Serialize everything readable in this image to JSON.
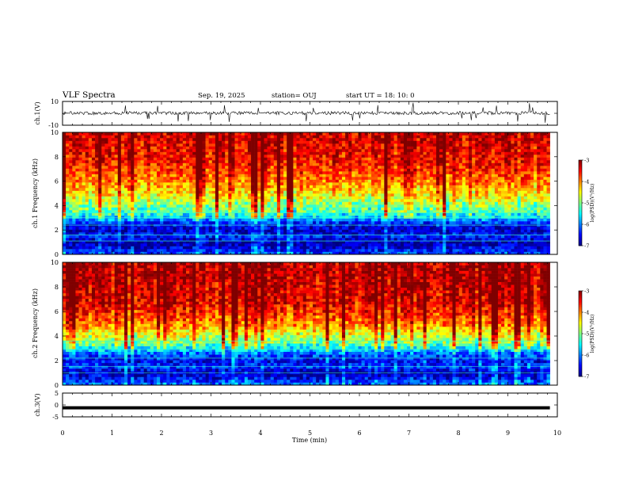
{
  "header": {
    "title": "VLF Spectra",
    "date": "Sep. 19, 2025",
    "station": "station= OUJ",
    "start": "start  UT =   18: 10: 0"
  },
  "chart_data": [
    {
      "type": "line",
      "panel": "ch1-waveform",
      "ylabel": "ch.1(V)",
      "ylim": [
        -10,
        10
      ],
      "ytick_labels": [
        "10",
        "-10"
      ],
      "x_range_min": [
        0,
        9.85
      ],
      "y_mean": 0.2,
      "y_typical_min": -2.5,
      "y_typical_max": 3.0,
      "y_spike_min": -8,
      "y_spike_max": 9,
      "grid": false
    },
    {
      "type": "heatmap",
      "panel": "ch1-spectrogram",
      "ylabel": "ch.1 Frequency (kHz)",
      "ylim": [
        0,
        10
      ],
      "ytick_labels": [
        "0",
        "2",
        "4",
        "6",
        "8",
        "10"
      ],
      "x_range_min": [
        0,
        9.85
      ],
      "colorbar": {
        "label": "log(PSD)(V²/Hz)",
        "range": [
          -7,
          -3
        ],
        "tick_labels": [
          "-3",
          "-4",
          "-5",
          "-6",
          "-7"
        ]
      },
      "level_by_frequency_khz": [
        [
          0,
          -6.2
        ],
        [
          0.5,
          -6.6
        ],
        [
          1.0,
          -6.9
        ],
        [
          1.5,
          -6.4
        ],
        [
          2.0,
          -6.8
        ],
        [
          2.5,
          -6.5
        ],
        [
          3.0,
          -5.7
        ],
        [
          3.5,
          -5.2
        ],
        [
          4.0,
          -5.0
        ],
        [
          5.0,
          -4.4
        ],
        [
          6.0,
          -4.0
        ],
        [
          7.0,
          -3.7
        ],
        [
          8.0,
          -3.5
        ],
        [
          10.0,
          -3.3
        ]
      ],
      "constant_lines_khz": [
        1.1,
        1.6,
        2.4,
        3.0,
        3.4
      ]
    },
    {
      "type": "heatmap",
      "panel": "ch2-spectrogram",
      "ylabel": "ch.2 Frequency (kHz)",
      "ylim": [
        0,
        10
      ],
      "ytick_labels": [
        "0",
        "2",
        "4",
        "6",
        "8",
        "10"
      ],
      "x_range_min": [
        0,
        9.85
      ],
      "colorbar": {
        "label": "log(PSD)(V²/Hz)",
        "range": [
          -7,
          -3
        ],
        "tick_labels": [
          "-3",
          "-4",
          "-5",
          "-6",
          "-7"
        ]
      },
      "level_by_frequency_khz": [
        [
          0,
          -6.0
        ],
        [
          0.5,
          -6.5
        ],
        [
          1.0,
          -6.8
        ],
        [
          1.5,
          -6.3
        ],
        [
          2.0,
          -6.6
        ],
        [
          2.5,
          -6.2
        ],
        [
          3.0,
          -5.6
        ],
        [
          3.5,
          -5.0
        ],
        [
          4.0,
          -4.7
        ],
        [
          5.0,
          -4.0
        ],
        [
          6.0,
          -3.6
        ],
        [
          7.0,
          -3.4
        ],
        [
          8.0,
          -3.3
        ],
        [
          10.0,
          -3.2
        ]
      ],
      "constant_lines_khz": [
        1.0,
        1.5,
        2.2,
        2.9,
        3.6
      ]
    },
    {
      "type": "line",
      "panel": "ch3-waveform",
      "ylabel": "ch.3(V)",
      "ylim": [
        -5,
        5
      ],
      "ytick_labels": [
        "5",
        "0",
        "-5"
      ],
      "x_range_min": [
        0,
        9.85
      ],
      "y_mean": -1.2,
      "grid": false
    },
    {
      "type": "axis",
      "panel": "time-axis",
      "xlabel": "Time  (min)",
      "xlim": [
        0,
        10
      ],
      "xtick_labels": [
        "0",
        "1",
        "2",
        "3",
        "4",
        "5",
        "6",
        "7",
        "8",
        "9",
        "10"
      ]
    }
  ],
  "colors": {
    "colormap": [
      "#00007f",
      "#0000ff",
      "#0080ff",
      "#00ffff",
      "#80ff80",
      "#ffff00",
      "#ff8000",
      "#ff0000",
      "#7f0000"
    ],
    "trace": "#000000",
    "frame": "#000000"
  }
}
